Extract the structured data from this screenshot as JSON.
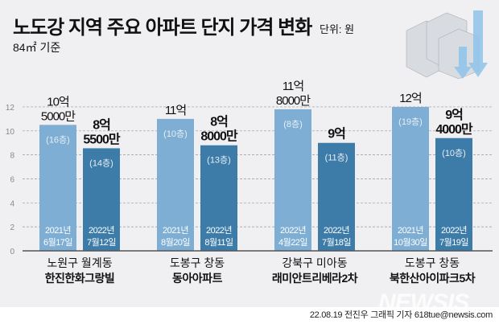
{
  "header": {
    "title": "노도강 지역 주요 아파트 단지 가격 변화",
    "unit": "단위: 원",
    "subtitle": "84㎡ 기준"
  },
  "footer": {
    "credit": "22.08.19 전진우 그래픽 기자 618tue@newsis.com",
    "logo": "NEWSIS"
  },
  "colors": {
    "bg": "#f0f0f2",
    "light": "#7eaed3",
    "dark": "#3d7ca8",
    "grid": "#999999"
  },
  "chart_data": {
    "type": "bar",
    "title": "노도강 지역 주요 아파트 단지 가격 변화",
    "ylabel": "억 원",
    "ylim": [
      0,
      12
    ],
    "yticks": [
      0,
      2,
      4,
      6,
      8,
      10,
      12
    ],
    "grid": true,
    "groups": [
      {
        "district": "노원구 월계동",
        "complex": "한진한화그랑빌",
        "bars": [
          {
            "value": 10.5,
            "label": [
              "10억",
              "5000만"
            ],
            "floor": "(16층)",
            "date": [
              "2021년",
              "6월17일"
            ],
            "series": "prev"
          },
          {
            "value": 8.55,
            "label": [
              "8억",
              "5500만"
            ],
            "floor": "(14층)",
            "date": [
              "2022년",
              "7월12일"
            ],
            "series": "recent"
          }
        ]
      },
      {
        "district": "도봉구 창동",
        "complex": "동아아파트",
        "bars": [
          {
            "value": 11,
            "label": [
              "11억"
            ],
            "floor": "(10층)",
            "date": [
              "2021년",
              "8월20일"
            ],
            "series": "prev"
          },
          {
            "value": 8.8,
            "label": [
              "8억",
              "8000만"
            ],
            "floor": "(13층)",
            "date": [
              "2022년",
              "8월11일"
            ],
            "series": "recent"
          }
        ]
      },
      {
        "district": "강북구 미아동",
        "complex": "래미안트리베라2차",
        "bars": [
          {
            "value": 11.8,
            "label": [
              "11억",
              "8000만"
            ],
            "floor": "(8층)",
            "date": [
              "2022년",
              "4월22일"
            ],
            "series": "prev"
          },
          {
            "value": 9,
            "label": [
              "9억"
            ],
            "floor": "(11층)",
            "date": [
              "2022년",
              "7월18일"
            ],
            "series": "recent"
          }
        ]
      },
      {
        "district": "도봉구 창동",
        "complex": "북한산아이파크5차",
        "bars": [
          {
            "value": 12,
            "label": [
              "12억"
            ],
            "floor": "(19층)",
            "date": [
              "2021년",
              "10월30일"
            ],
            "series": "prev"
          },
          {
            "value": 9.4,
            "label": [
              "9억",
              "4000만"
            ],
            "floor": "(10층)",
            "date": [
              "2022년",
              "7월19일"
            ],
            "series": "recent"
          }
        ]
      }
    ]
  }
}
